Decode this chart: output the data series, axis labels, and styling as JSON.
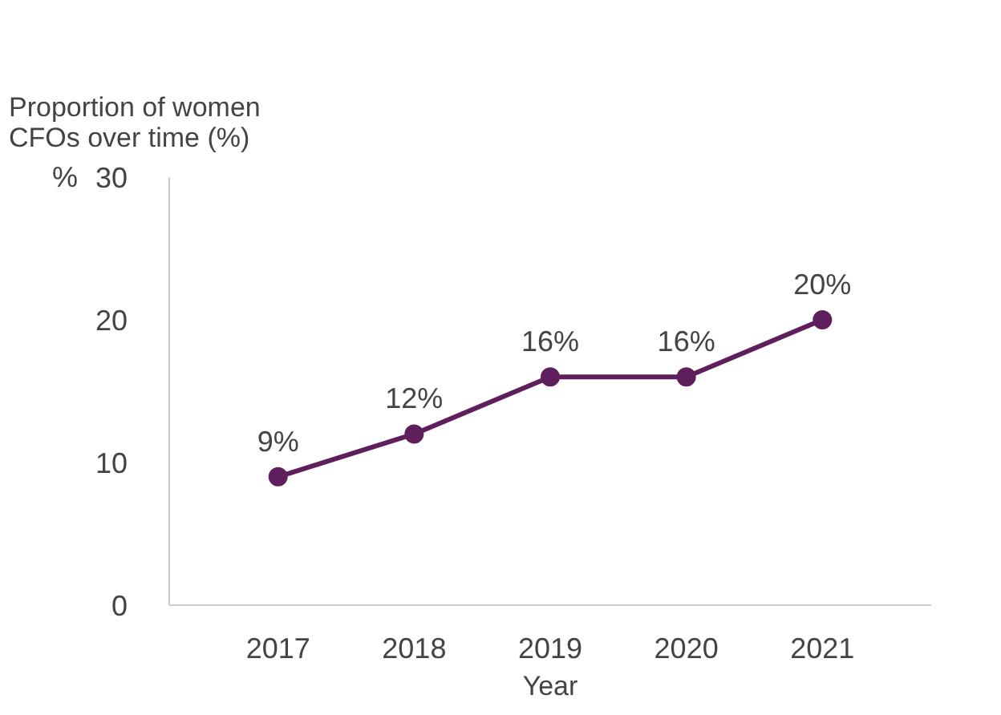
{
  "chart_data": {
    "type": "line",
    "title": "Proportion of women\nCFOs over time (%)",
    "xlabel": "Year",
    "ylabel": "%",
    "categories": [
      "2017",
      "2018",
      "2019",
      "2020",
      "2021"
    ],
    "series": [
      {
        "color": "#5e1f5c",
        "values": [
          9,
          12,
          16,
          16,
          20
        ],
        "value_labels": [
          "9%",
          "12%",
          "16%",
          "16%",
          "20%"
        ]
      }
    ],
    "ylim": [
      0,
      30
    ],
    "yticks": [
      0,
      10,
      20,
      30
    ],
    "grid": false,
    "marker": "circle",
    "line_style": "solid"
  }
}
